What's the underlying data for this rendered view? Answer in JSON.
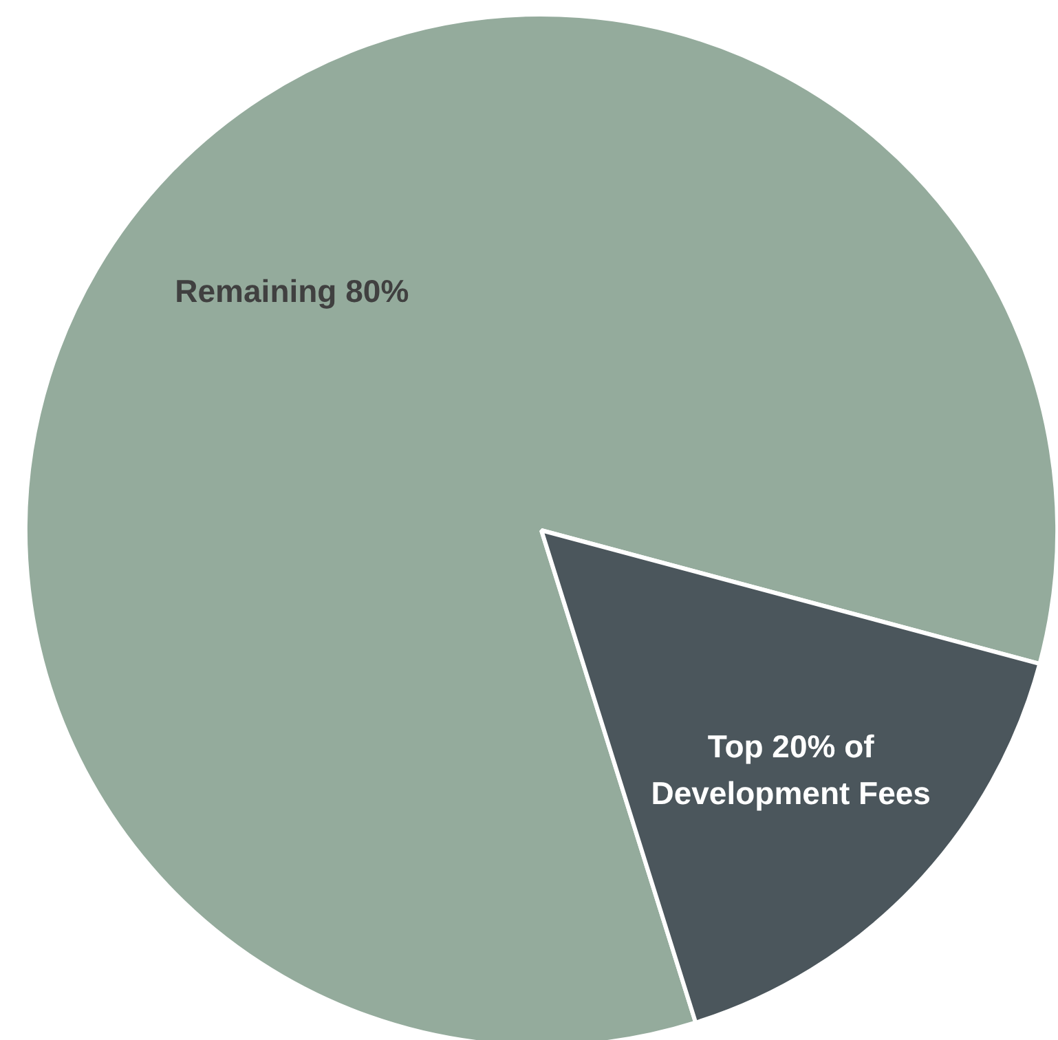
{
  "chart_data": {
    "type": "pie",
    "categories": [
      "Remaining 80%",
      "Top 20% of Development Fees"
    ],
    "values": [
      84,
      16
    ],
    "colors": [
      "#94ab9c",
      "#4b565c"
    ]
  }
}
